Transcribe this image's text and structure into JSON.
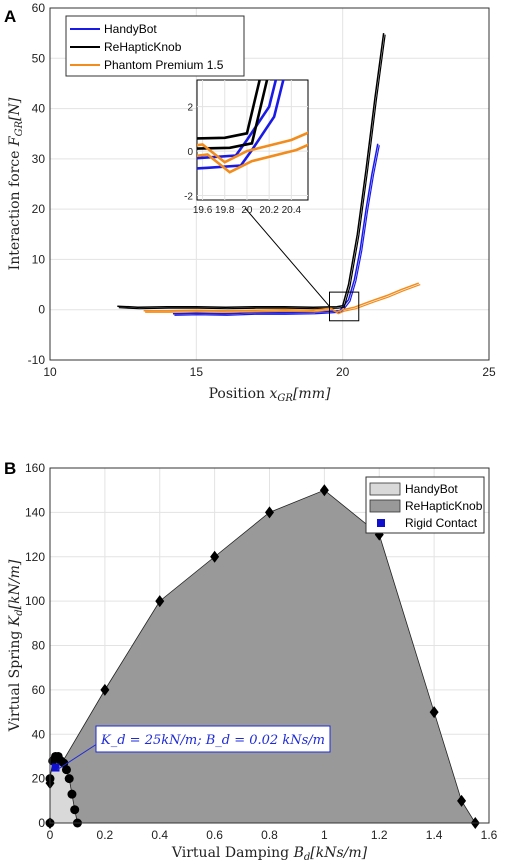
{
  "chart_data": [
    {
      "panel": "A",
      "type": "line",
      "xlabel": "Position x_GR[mm]",
      "ylabel": "Interaction force F_GR[N]",
      "xlim": [
        10,
        25
      ],
      "ylim": [
        -10,
        60
      ],
      "xticks": [
        "10",
        "15",
        "20",
        "25"
      ],
      "yticks": [
        "-10",
        "0",
        "10",
        "20",
        "30",
        "40",
        "50",
        "60"
      ],
      "grid": true,
      "legend": "top-left",
      "series": [
        {
          "name": "HandyBot",
          "color": "#1a1ae6",
          "x": [
            14.2,
            15,
            16,
            17,
            18,
            19,
            19.6,
            19.9,
            20.0,
            20.2,
            20.4,
            20.6,
            20.8,
            21.0,
            21.2
          ],
          "y": [
            -0.8,
            -0.7,
            -0.8,
            -0.6,
            -0.6,
            -0.5,
            -0.3,
            -0.2,
            0.5,
            2,
            6,
            12,
            20,
            27,
            33
          ]
        },
        {
          "name": "ReHapticKnob",
          "color": "#000000",
          "x": [
            12.3,
            13,
            14,
            15,
            16,
            17,
            18,
            19,
            19.8,
            20.0,
            20.2,
            20.5,
            20.8,
            21.1,
            21.4
          ],
          "y": [
            0.7,
            0.5,
            0.6,
            0.6,
            0.5,
            0.6,
            0.6,
            0.5,
            0.6,
            0.8,
            5,
            15,
            28,
            42,
            55
          ]
        },
        {
          "name": "Phantom Premium 1.5",
          "color": "#f28c1c",
          "x": [
            13.2,
            14,
            15,
            16,
            17,
            18,
            19,
            19.6,
            19.8,
            20,
            20.4,
            21,
            21.5,
            22,
            22.6
          ],
          "y": [
            -0.2,
            -0.2,
            -0.1,
            -0.2,
            -0.1,
            0,
            -0.1,
            0.3,
            -0.5,
            0,
            0.5,
            1.8,
            2.8,
            4,
            5.3
          ]
        }
      ],
      "inset": {
        "xlim": [
          19.55,
          20.55
        ],
        "ylim": [
          -2.2,
          3.2
        ],
        "xticks": [
          "19.6",
          "19.8",
          "20",
          "20.2",
          "20.4"
        ],
        "yticks": [
          "-2",
          "0",
          "2"
        ]
      }
    },
    {
      "panel": "B",
      "type": "area",
      "xlabel": "Virtual Damping B_d[kNs/m]",
      "ylabel": "Virtual Spring K_d[kN/m]",
      "xlim": [
        0,
        1.6
      ],
      "ylim": [
        0,
        160
      ],
      "xticks": [
        "0",
        "0.2",
        "0.4",
        "0.6",
        "0.8",
        "1",
        "1.2",
        "1.4",
        "1.6"
      ],
      "yticks": [
        "0",
        "20",
        "40",
        "60",
        "80",
        "100",
        "120",
        "140",
        "160"
      ],
      "grid": true,
      "legend": "top-right",
      "series": [
        {
          "name": "HandyBot",
          "color": "#d9d9d9",
          "marker": "circle",
          "x": [
            0,
            0,
            0.01,
            0.02,
            0.03,
            0.04,
            0.05,
            0.06,
            0.07,
            0.08,
            0.09,
            0.1
          ],
          "y": [
            0,
            20,
            28,
            30,
            30,
            28,
            27,
            24,
            20,
            13,
            6,
            0
          ]
        },
        {
          "name": "ReHapticKnob",
          "color": "#999999",
          "marker": "diamond",
          "x": [
            0,
            0,
            0.2,
            0.4,
            0.6,
            0.8,
            1.0,
            1.2,
            1.4,
            1.5,
            1.55
          ],
          "y": [
            0,
            18,
            60,
            100,
            120,
            140,
            150,
            130,
            50,
            10,
            0
          ]
        },
        {
          "name": "Rigid Contact",
          "color": "#1010cc",
          "marker": "square",
          "x": [
            0.02
          ],
          "y": [
            25
          ]
        }
      ],
      "annotation": "K_d = 25kN/m; B_d = 0.02 kNs/m"
    }
  ]
}
